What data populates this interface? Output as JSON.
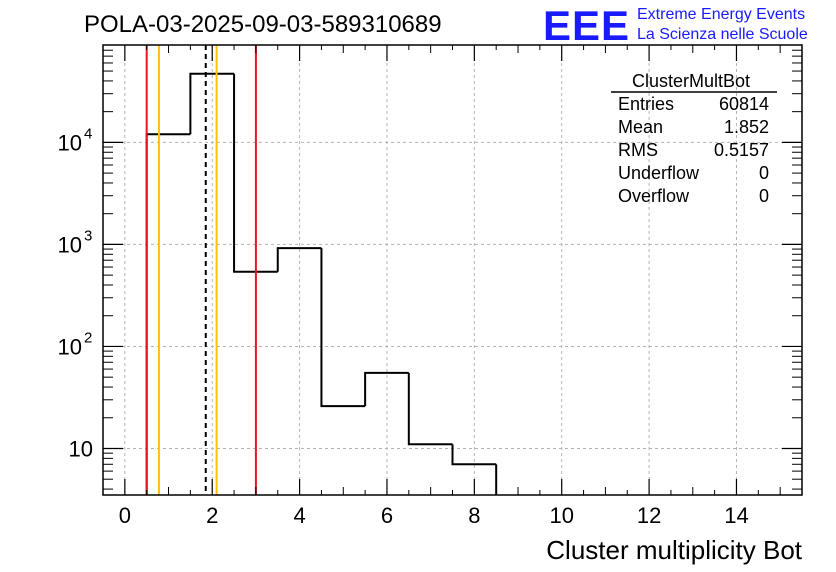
{
  "chart_data": {
    "type": "histogram",
    "title": "POLA-03-2025-09-03-589310689",
    "xlabel": "Cluster multiplicity Bot",
    "ylabel": "",
    "xlim": [
      -0.5,
      15.5
    ],
    "ylim": [
      3.5,
      90000
    ],
    "yscale": "log",
    "grid": true,
    "x_ticks": [
      "0",
      "2",
      "4",
      "6",
      "8",
      "10",
      "12",
      "14"
    ],
    "x_tick_values": [
      0,
      2,
      4,
      6,
      8,
      10,
      12,
      14
    ],
    "y_ticks": [
      {
        "value": 10,
        "base": "10",
        "exp": ""
      },
      {
        "value": 100,
        "base": "10",
        "exp": "2"
      },
      {
        "value": 1000,
        "base": "10",
        "exp": "3"
      },
      {
        "value": 10000,
        "base": "10",
        "exp": "4"
      }
    ],
    "bins": {
      "edges": [
        0.5,
        1.5,
        2.5,
        3.5,
        4.5,
        5.5,
        6.5,
        7.5,
        8.5
      ],
      "counts": [
        12000,
        47000,
        540,
        920,
        26,
        55,
        11,
        7
      ]
    },
    "vertical_lines": [
      {
        "name": "red-line-left",
        "x": 0.5,
        "color": "#e8161b",
        "style": "solid"
      },
      {
        "name": "orange-line-left",
        "x": 0.78,
        "color": "#ffc000",
        "style": "solid"
      },
      {
        "name": "mean-line",
        "x": 1.852,
        "color": "#000000",
        "style": "dashed"
      },
      {
        "name": "orange-line-right",
        "x": 2.1,
        "color": "#ffc000",
        "style": "solid"
      },
      {
        "name": "red-line-right",
        "x": 3.0,
        "color": "#e8161b",
        "style": "solid"
      }
    ],
    "stats": {
      "title": "ClusterMultBot",
      "rows": [
        {
          "label": "Entries",
          "value": "60814"
        },
        {
          "label": "Mean",
          "value": "1.852"
        },
        {
          "label": "RMS",
          "value": "0.5157"
        },
        {
          "label": "Underflow",
          "value": "0"
        },
        {
          "label": "Overflow",
          "value": "0"
        }
      ]
    },
    "logo": {
      "text": "EEE",
      "line1": "Extreme Energy Events",
      "line2": "La Scienza nelle Scuole",
      "color": "#1a1aff"
    }
  }
}
